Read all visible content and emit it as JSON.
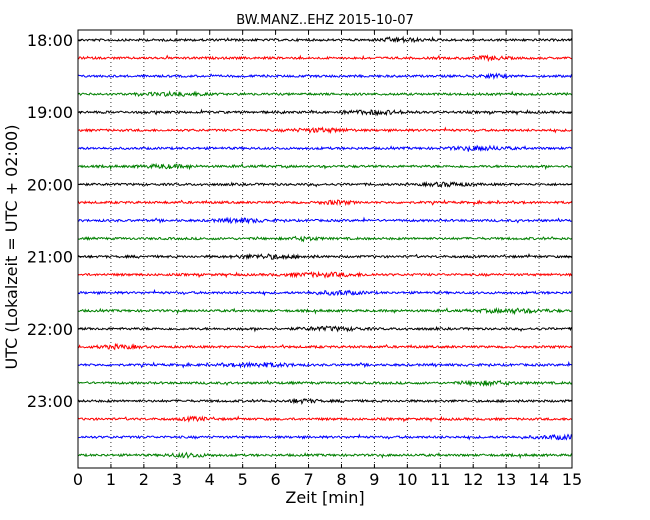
{
  "chart_data": {
    "type": "line",
    "title": "BW.MANZ..EHZ 2015-10-07",
    "xlabel": "Zeit  [min]",
    "ylabel": "UTC (Lokalzeit = UTC + 02:00)",
    "xlim": [
      0,
      15
    ],
    "x_ticks": [
      0,
      1,
      2,
      3,
      4,
      5,
      6,
      7,
      8,
      9,
      10,
      11,
      12,
      13,
      14,
      15
    ],
    "x_tick_labels": [
      "0",
      "1",
      "2",
      "3",
      "4",
      "5",
      "6",
      "7",
      "8",
      "9",
      "10",
      "11",
      "12",
      "13",
      "14",
      "15"
    ],
    "grid": "vertical dotted at each minute",
    "trace_interval_min": 15,
    "trace_count": 24,
    "y_tick_labels": [
      "18:00",
      "19:00",
      "20:00",
      "21:00",
      "22:00",
      "23:00"
    ],
    "trace_colors": [
      "#000000",
      "#ff0000",
      "#0000ff",
      "#008000"
    ],
    "series": [
      {
        "start": "18:00",
        "color": "#000000"
      },
      {
        "start": "18:15",
        "color": "#ff0000"
      },
      {
        "start": "18:30",
        "color": "#0000ff"
      },
      {
        "start": "18:45",
        "color": "#008000"
      },
      {
        "start": "19:00",
        "color": "#000000"
      },
      {
        "start": "19:15",
        "color": "#ff0000"
      },
      {
        "start": "19:30",
        "color": "#0000ff"
      },
      {
        "start": "19:45",
        "color": "#008000"
      },
      {
        "start": "20:00",
        "color": "#000000"
      },
      {
        "start": "20:15",
        "color": "#ff0000"
      },
      {
        "start": "20:30",
        "color": "#0000ff"
      },
      {
        "start": "20:45",
        "color": "#008000"
      },
      {
        "start": "21:00",
        "color": "#000000"
      },
      {
        "start": "21:15",
        "color": "#ff0000"
      },
      {
        "start": "21:30",
        "color": "#0000ff"
      },
      {
        "start": "21:45",
        "color": "#008000"
      },
      {
        "start": "22:00",
        "color": "#000000"
      },
      {
        "start": "22:15",
        "color": "#ff0000"
      },
      {
        "start": "22:30",
        "color": "#0000ff"
      },
      {
        "start": "22:45",
        "color": "#008000"
      },
      {
        "start": "23:00",
        "color": "#000000"
      },
      {
        "start": "23:15",
        "color": "#ff0000"
      },
      {
        "start": "23:30",
        "color": "#0000ff"
      },
      {
        "start": "23:45",
        "color": "#008000"
      }
    ]
  }
}
